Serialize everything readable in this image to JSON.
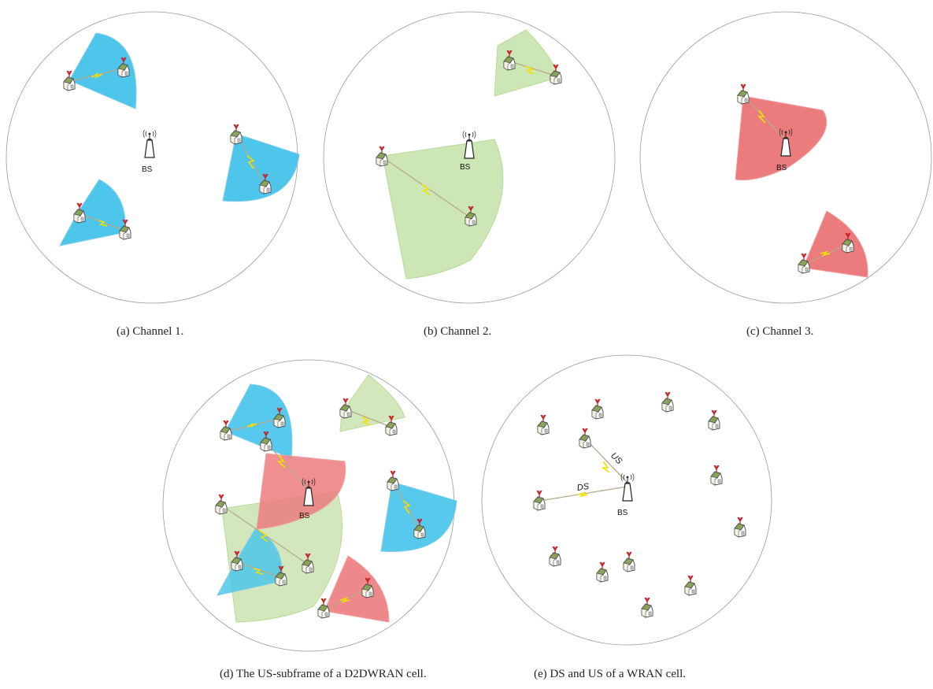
{
  "panels": {
    "a": {
      "caption": "(a) Channel 1.",
      "bs_label": "BS",
      "sector_color": "#44c3ea"
    },
    "b": {
      "caption": "(b) Channel 2.",
      "bs_label": "BS",
      "sector_color": "#cde6b5"
    },
    "c": {
      "caption": "(c) Channel 3.",
      "bs_label": "BS",
      "sector_color": "#ec7b7e"
    },
    "d": {
      "caption": "(d) The US-subframe of a D2DWRAN cell.",
      "bs_label": "BS"
    },
    "e": {
      "caption": "(e) DS and US of a WRAN cell.",
      "bs_label": "BS",
      "ds_label": "DS",
      "us_label": "US"
    }
  },
  "colors": {
    "channel_1": "#44c3ea",
    "channel_2": "#cde6b5",
    "channel_3": "#ec7b7e",
    "antenna": "#c0272d",
    "house_roof": "#8aa35a",
    "link": "#b8a98a",
    "bolt": "#f2e000"
  },
  "icons": [
    "base-station-icon",
    "house-icon",
    "antenna-icon",
    "lightning-bolt-icon"
  ]
}
